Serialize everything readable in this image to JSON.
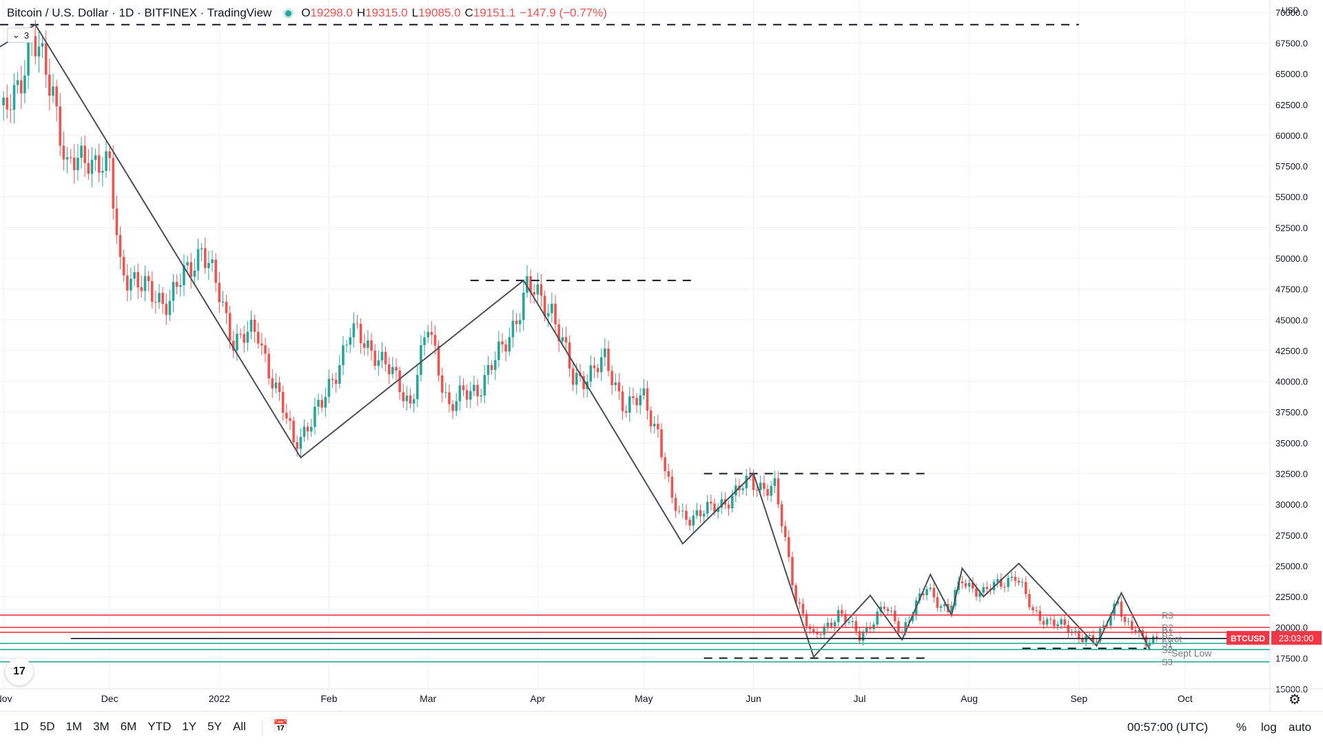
{
  "header": {
    "symbol_title": "Bitcoin / U.S. Dollar · 1D · BITFINEX · TradingView",
    "ohlc": [
      {
        "k": "O",
        "v": "19298.0"
      },
      {
        "k": "H",
        "v": "19315.0"
      },
      {
        "k": "L",
        "v": "19085.0"
      },
      {
        "k": "C",
        "v": "19151.1"
      },
      {
        "k": "",
        "v": "−147.9 (−0.77%)"
      }
    ],
    "collapse_label": "3",
    "collapse_icon": "chevron-down-icon"
  },
  "axis": {
    "currency": "USD",
    "price_label": "BTCUSD",
    "countdown": "23:03:00"
  },
  "bottom": {
    "ranges": [
      "1D",
      "5D",
      "1M",
      "3M",
      "6M",
      "YTD",
      "1Y",
      "5Y",
      "All"
    ],
    "clock": "00:57:00 (UTC)",
    "percent": "%",
    "log": "log",
    "auto": "auto",
    "logo": "17"
  },
  "chart_data": {
    "type": "candlestick",
    "title": "Bitcoin / U.S. Dollar · 1D · BITFINEX · TradingView",
    "ylim": [
      15000,
      71000
    ],
    "y_ticks": [
      15000,
      17500,
      20000,
      22500,
      25000,
      27500,
      30000,
      32500,
      35000,
      37500,
      40000,
      42500,
      45000,
      47500,
      50000,
      52500,
      55000,
      57500,
      60000,
      62500,
      65000,
      67500,
      70000
    ],
    "y_tick_labels": [
      "15000.0",
      "17500.0",
      "20000.0",
      "22500.0",
      "25000.0",
      "27500.0",
      "30000.0",
      "32500.0",
      "35000.0",
      "37500.0",
      "40000.0",
      "42500.0",
      "45000.0",
      "47500.0",
      "50000.0",
      "52500.0",
      "55000.0",
      "57500.0",
      "60000.0",
      "62500.0",
      "65000.0",
      "67500.0",
      "70000.0"
    ],
    "x_ticks": [
      {
        "date": "2021-11-01",
        "label": "Nov"
      },
      {
        "date": "2021-12-01",
        "label": "Dec"
      },
      {
        "date": "2022-01-01",
        "label": "2022"
      },
      {
        "date": "2022-02-01",
        "label": "Feb"
      },
      {
        "date": "2022-03-01",
        "label": "Mar"
      },
      {
        "date": "2022-04-01",
        "label": "Apr"
      },
      {
        "date": "2022-05-01",
        "label": "May"
      },
      {
        "date": "2022-06-01",
        "label": "Jun"
      },
      {
        "date": "2022-07-01",
        "label": "Jul"
      },
      {
        "date": "2022-08-01",
        "label": "Aug"
      },
      {
        "date": "2022-09-01",
        "label": "Sep"
      },
      {
        "date": "2022-10-01",
        "label": "Oct"
      }
    ],
    "x_range": [
      "2021-10-31",
      "2022-10-25"
    ],
    "last_price": 19151.1,
    "close_path": [
      {
        "date": "2021-11-01",
        "close": 61300
      },
      {
        "date": "2021-11-09",
        "close": 67500
      },
      {
        "date": "2021-11-15",
        "close": 64000
      },
      {
        "date": "2021-11-19",
        "close": 57000
      },
      {
        "date": "2021-11-25",
        "close": 58500
      },
      {
        "date": "2021-12-01",
        "close": 57000
      },
      {
        "date": "2021-12-04",
        "close": 49500
      },
      {
        "date": "2021-12-10",
        "close": 47500
      },
      {
        "date": "2021-12-18",
        "close": 46500
      },
      {
        "date": "2021-12-27",
        "close": 51000
      },
      {
        "date": "2022-01-05",
        "close": 43500
      },
      {
        "date": "2022-01-12",
        "close": 43800
      },
      {
        "date": "2022-01-22",
        "close": 35000
      },
      {
        "date": "2022-01-30",
        "close": 38000
      },
      {
        "date": "2022-02-07",
        "close": 44000
      },
      {
        "date": "2022-02-14",
        "close": 42500
      },
      {
        "date": "2022-02-24",
        "close": 38300
      },
      {
        "date": "2022-03-01",
        "close": 44300
      },
      {
        "date": "2022-03-07",
        "close": 38000
      },
      {
        "date": "2022-03-15",
        "close": 39500
      },
      {
        "date": "2022-03-22",
        "close": 42500
      },
      {
        "date": "2022-03-29",
        "close": 47500
      },
      {
        "date": "2022-04-05",
        "close": 46000
      },
      {
        "date": "2022-04-11",
        "close": 40000
      },
      {
        "date": "2022-04-20",
        "close": 41500
      },
      {
        "date": "2022-04-26",
        "close": 38000
      },
      {
        "date": "2022-05-01",
        "close": 38500
      },
      {
        "date": "2022-05-05",
        "close": 36000
      },
      {
        "date": "2022-05-09",
        "close": 30000
      },
      {
        "date": "2022-05-12",
        "close": 29000
      },
      {
        "date": "2022-05-20",
        "close": 29500
      },
      {
        "date": "2022-05-31",
        "close": 31800
      },
      {
        "date": "2022-06-07",
        "close": 31300
      },
      {
        "date": "2022-06-13",
        "close": 22500
      },
      {
        "date": "2022-06-18",
        "close": 19000
      },
      {
        "date": "2022-06-25",
        "close": 21200
      },
      {
        "date": "2022-07-01",
        "close": 19300
      },
      {
        "date": "2022-07-08",
        "close": 21600
      },
      {
        "date": "2022-07-13",
        "close": 19800
      },
      {
        "date": "2022-07-20",
        "close": 23200
      },
      {
        "date": "2022-07-26",
        "close": 21300
      },
      {
        "date": "2022-07-30",
        "close": 23800
      },
      {
        "date": "2022-08-05",
        "close": 22800
      },
      {
        "date": "2022-08-14",
        "close": 24300
      },
      {
        "date": "2022-08-19",
        "close": 21200
      },
      {
        "date": "2022-08-26",
        "close": 20200
      },
      {
        "date": "2022-09-06",
        "close": 18800
      },
      {
        "date": "2022-09-12",
        "close": 22400
      },
      {
        "date": "2022-09-14",
        "close": 20200
      },
      {
        "date": "2022-09-20",
        "close": 19000
      },
      {
        "date": "2022-09-23",
        "close": 19151.1
      }
    ],
    "trendline": [
      {
        "date": "2021-10-31",
        "price": 67200
      },
      {
        "date": "2021-11-10",
        "price": 69000
      },
      {
        "date": "2022-01-24",
        "price": 33800
      },
      {
        "date": "2022-03-28",
        "price": 48200
      },
      {
        "date": "2022-05-12",
        "price": 26800
      },
      {
        "date": "2022-06-01",
        "price": 32500
      },
      {
        "date": "2022-06-18",
        "price": 17600
      },
      {
        "date": "2022-07-04",
        "price": 22600
      },
      {
        "date": "2022-07-13",
        "price": 19000
      },
      {
        "date": "2022-07-21",
        "price": 24300
      },
      {
        "date": "2022-07-27",
        "price": 21000
      },
      {
        "date": "2022-07-30",
        "price": 24800
      },
      {
        "date": "2022-08-05",
        "price": 22500
      },
      {
        "date": "2022-08-15",
        "price": 25200
      },
      {
        "date": "2022-09-06",
        "price": 18500
      },
      {
        "date": "2022-09-13",
        "price": 22800
      },
      {
        "date": "2022-09-21",
        "price": 18200
      }
    ],
    "dashed_levels": [
      {
        "price": 69000,
        "from": "2021-10-31",
        "to": "2022-09-01"
      },
      {
        "price": 48200,
        "from": "2022-03-13",
        "to": "2022-05-15"
      },
      {
        "price": 32500,
        "from": "2022-05-18",
        "to": "2022-07-20"
      },
      {
        "price": 17500,
        "from": "2022-05-18",
        "to": "2022-07-20"
      },
      {
        "price": 18300,
        "from": "2022-08-16",
        "to": "2022-09-20"
      }
    ],
    "pivot_levels": [
      {
        "name": "R3",
        "price": 21000,
        "color": "#f23645"
      },
      {
        "name": "R2",
        "price": 20000,
        "color": "#f23645"
      },
      {
        "name": "R1",
        "price": 19600,
        "color": "#f23645"
      },
      {
        "name": "Pivot",
        "price": 19100,
        "color": "#131722"
      },
      {
        "name": "S1",
        "price": 18700,
        "color": "#22ab94"
      },
      {
        "name": "S2",
        "price": 18200,
        "color": "#22ab94"
      },
      {
        "name": "S3",
        "price": 17200,
        "color": "#22ab94"
      }
    ],
    "annotation": "Sept Low",
    "colors": {
      "up": "#26a69a",
      "down": "#ef5350",
      "grid": "#eef2f6",
      "last": "#f23645"
    }
  }
}
